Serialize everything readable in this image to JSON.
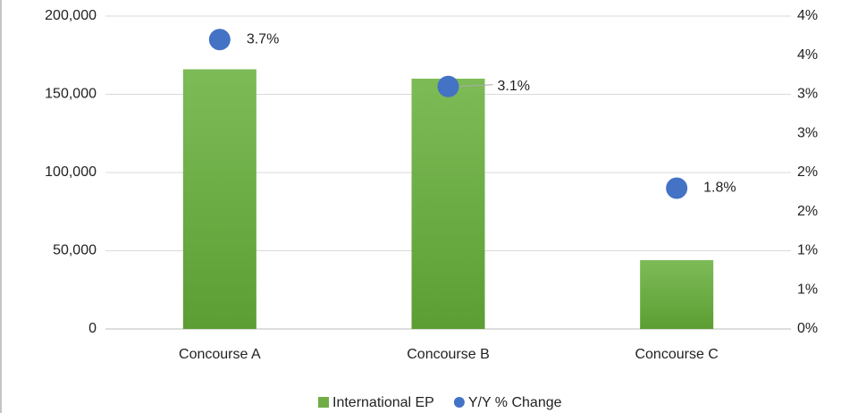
{
  "chart_data": {
    "type": "bar",
    "categories": [
      "Concourse A",
      "Concourse B",
      "Concourse C"
    ],
    "series": [
      {
        "name": "International EP",
        "type": "bar",
        "color": "#70ad47",
        "values": [
          166000,
          160000,
          44000
        ]
      },
      {
        "name": "Y/Y % Change",
        "type": "scatter",
        "axis": "y2",
        "color": "#4472c4",
        "values": [
          3.7,
          3.1,
          1.8
        ],
        "value_labels": [
          "3.7%",
          "3.1%",
          "1.8%"
        ]
      }
    ],
    "ylim": [
      0,
      200000
    ],
    "yticks": [
      0,
      {
        "value": 50000,
        "label": "50,000"
      },
      {
        "value": 100000,
        "label": "100,000"
      },
      {
        "value": 150000,
        "label": "150,000"
      },
      {
        "value": 200000,
        "label": "200,000"
      }
    ],
    "y2lim": [
      0,
      4
    ],
    "y2ticks": [
      {
        "value": 0,
        "label": "0%"
      },
      {
        "value": 0.5,
        "label": "1%"
      },
      {
        "value": 1,
        "label": "1%"
      },
      {
        "value": 1.5,
        "label": "2%"
      },
      {
        "value": 2,
        "label": "2%"
      },
      {
        "value": 2.5,
        "label": "3%"
      },
      {
        "value": 3,
        "label": "3%"
      },
      {
        "value": 3.5,
        "label": "4%"
      },
      {
        "value": 4,
        "label": "4%"
      }
    ],
    "grid": true,
    "legend": "bottom"
  }
}
